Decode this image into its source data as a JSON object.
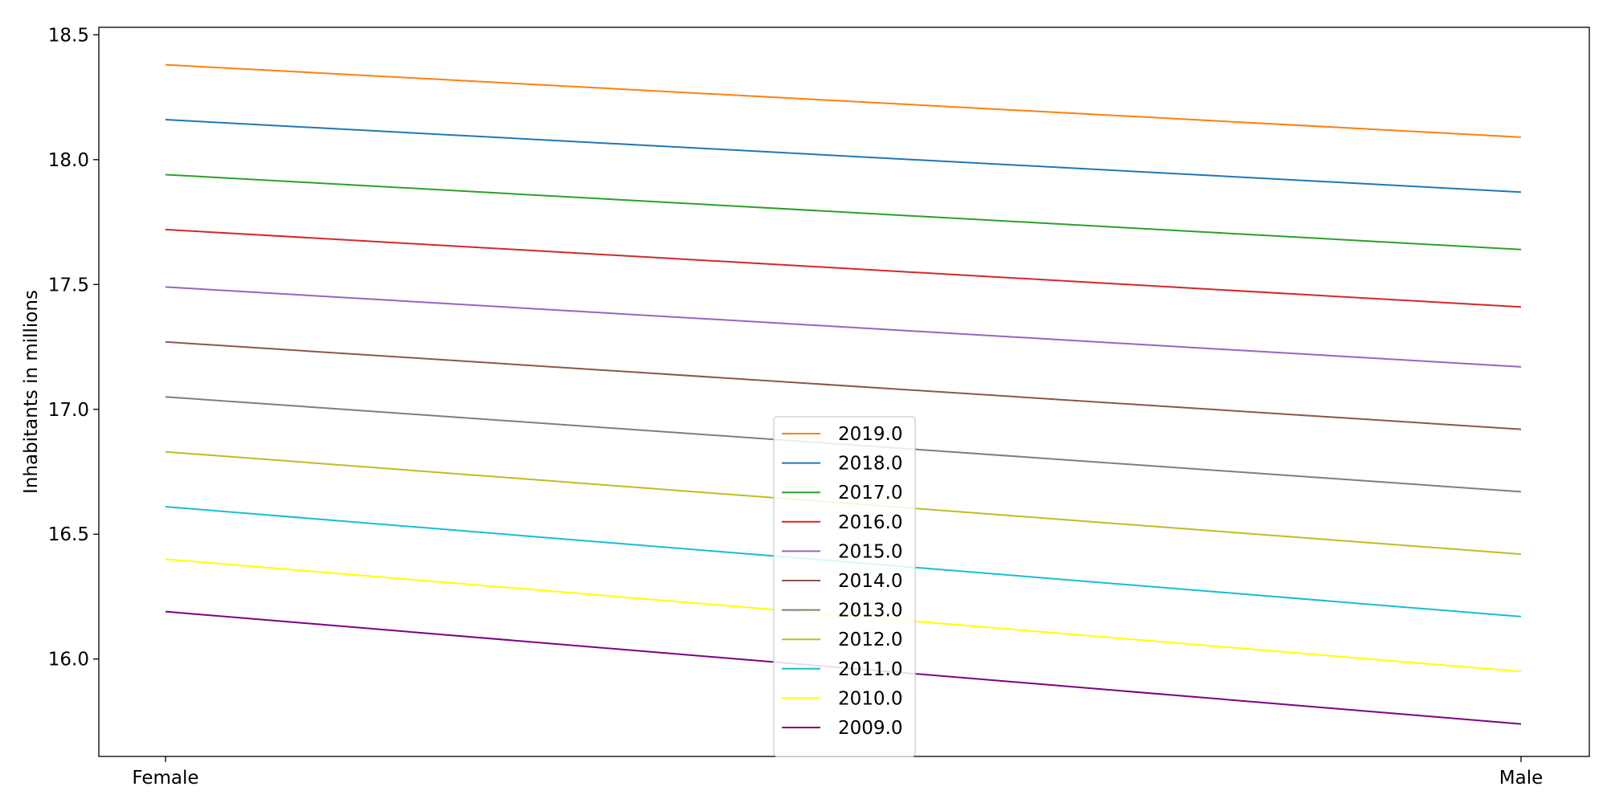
{
  "chart_data": {
    "type": "line",
    "title": "",
    "xlabel": "",
    "ylabel": "Inhabitants in millions",
    "categories": [
      "Female",
      "Male"
    ],
    "ylim": [
      15.61,
      18.53
    ],
    "yticks": [
      "16.0",
      "16.5",
      "17.0",
      "17.5",
      "18.0",
      "18.5"
    ],
    "grid": false,
    "legend_position": "lower-center",
    "series": [
      {
        "name": "2019.0",
        "color": "#ff7f0e",
        "values": [
          18.38,
          18.09
        ]
      },
      {
        "name": "2018.0",
        "color": "#1f77b4",
        "values": [
          18.16,
          17.87
        ]
      },
      {
        "name": "2017.0",
        "color": "#2ca02c",
        "values": [
          17.94,
          17.64
        ]
      },
      {
        "name": "2016.0",
        "color": "#d62728",
        "values": [
          17.72,
          17.41
        ]
      },
      {
        "name": "2015.0",
        "color": "#9467bd",
        "values": [
          17.49,
          17.17
        ]
      },
      {
        "name": "2014.0",
        "color": "#8c564b",
        "values": [
          17.27,
          16.92
        ]
      },
      {
        "name": "2013.0",
        "color": "#7f7f7f",
        "values": [
          17.05,
          16.67
        ]
      },
      {
        "name": "2012.0",
        "color": "#bcbd22",
        "values": [
          16.83,
          16.42
        ]
      },
      {
        "name": "2011.0",
        "color": "#17becf",
        "values": [
          16.61,
          16.17
        ]
      },
      {
        "name": "2010.0",
        "color": "#ffff00",
        "values": [
          16.4,
          15.95
        ]
      },
      {
        "name": "2009.0",
        "color": "#800080",
        "values": [
          16.19,
          15.74
        ]
      }
    ]
  }
}
